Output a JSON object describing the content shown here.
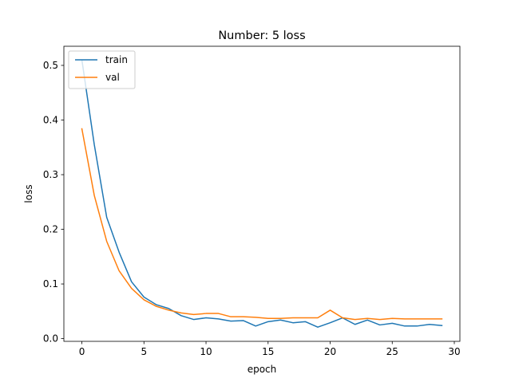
{
  "chart_data": {
    "type": "line",
    "title": "Number: 5 loss",
    "xlabel": "epoch",
    "ylabel": "loss",
    "xlim": [
      -1.45,
      30.45
    ],
    "ylim": [
      -0.005,
      0.535
    ],
    "x_ticks": [
      0,
      5,
      10,
      15,
      20,
      25,
      30
    ],
    "y_ticks": [
      0.0,
      0.1,
      0.2,
      0.3,
      0.4,
      0.5
    ],
    "grid": false,
    "legend_position": "top-left",
    "x": [
      0,
      1,
      2,
      3,
      4,
      5,
      6,
      7,
      8,
      9,
      10,
      11,
      12,
      13,
      14,
      15,
      16,
      17,
      18,
      19,
      20,
      21,
      22,
      23,
      24,
      25,
      26,
      27,
      28,
      29
    ],
    "series": [
      {
        "name": "train",
        "color": "#1f77b4",
        "values": [
          0.51,
          0.355,
          0.222,
          0.158,
          0.104,
          0.076,
          0.062,
          0.055,
          0.042,
          0.035,
          0.038,
          0.036,
          0.032,
          0.033,
          0.023,
          0.031,
          0.034,
          0.029,
          0.031,
          0.021,
          0.029,
          0.038,
          0.026,
          0.034,
          0.025,
          0.028,
          0.023,
          0.023,
          0.026,
          0.024
        ]
      },
      {
        "name": "val",
        "color": "#ff7f0e",
        "values": [
          0.384,
          0.262,
          0.178,
          0.124,
          0.092,
          0.071,
          0.059,
          0.052,
          0.047,
          0.044,
          0.046,
          0.046,
          0.04,
          0.04,
          0.039,
          0.037,
          0.037,
          0.038,
          0.038,
          0.038,
          0.052,
          0.038,
          0.035,
          0.037,
          0.035,
          0.037,
          0.036,
          0.036,
          0.036,
          0.036
        ]
      }
    ]
  }
}
